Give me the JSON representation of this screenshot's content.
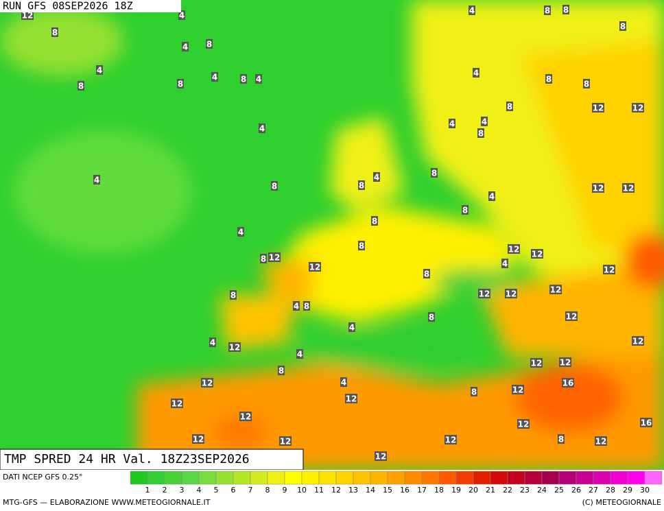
{
  "header": {
    "run": "RUN GFS 08SEP2026 18Z",
    "product": "TMP SPRED 24 HR Val. 18Z23SEP2026"
  },
  "map": {
    "labels": [
      12,
      8,
      4,
      4,
      8,
      4,
      8,
      8,
      4,
      8,
      4,
      4,
      8,
      8,
      8,
      4,
      8,
      8,
      12,
      12,
      8,
      4,
      4,
      4,
      8,
      4,
      8,
      8,
      8,
      4,
      12,
      12,
      4,
      4,
      8,
      8,
      8,
      12,
      12,
      12,
      8,
      12,
      12,
      4,
      8,
      8,
      4,
      8,
      12,
      12,
      12,
      12,
      8,
      4,
      4,
      12,
      4,
      8,
      12,
      12,
      12,
      4,
      16,
      12,
      8,
      12,
      12,
      12,
      12,
      16,
      12,
      12,
      12,
      12,
      8,
      12,
      12
    ]
  },
  "colorbar": {
    "source": "DATI NCEP GFS 0.25°",
    "ticks": [
      1,
      2,
      3,
      4,
      5,
      6,
      7,
      8,
      9,
      10,
      11,
      12,
      13,
      14,
      15,
      16,
      17,
      18,
      19,
      20,
      21,
      22,
      23,
      24,
      25,
      26,
      27,
      28,
      29,
      30
    ],
    "colors": [
      "#1ec81e",
      "#32cd32",
      "#46d232",
      "#5ad746",
      "#78dc3c",
      "#96e132",
      "#b4e628",
      "#d2eb1e",
      "#f0f014",
      "#ffff00",
      "#fff000",
      "#ffe100",
      "#ffd200",
      "#ffc300",
      "#ffb400",
      "#ffa000",
      "#ff8c00",
      "#ff7800",
      "#ff5a00",
      "#f03c00",
      "#e11e00",
      "#d20a0a",
      "#c3001e",
      "#b4003c",
      "#a50050",
      "#b40078",
      "#c80096",
      "#dc00b4",
      "#f000d2",
      "#ff00f0",
      "#ff64ff"
    ]
  },
  "footer": {
    "left": "MTG-GFS — ELABORAZIONE WWW.METEOGIORNALE.IT",
    "right": "(C) METEOGIORNALE"
  }
}
